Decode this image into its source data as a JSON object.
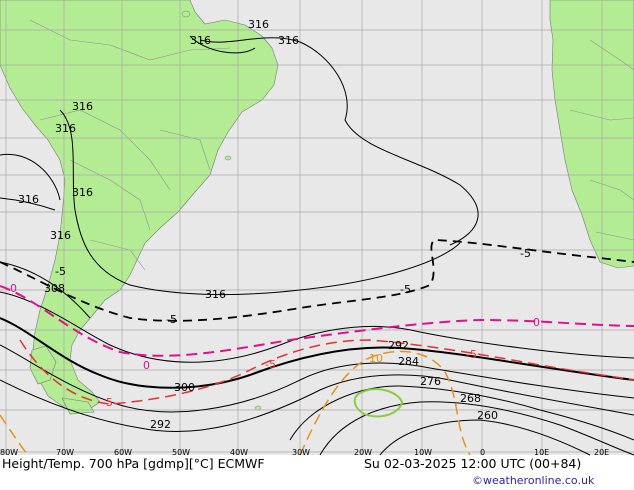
{
  "map": {
    "title_left": "Height/Temp. 700 hPa [gdmp][°C] ECMWF",
    "title_right": "Su 02-03-2025 12:00 UTC (00+84)",
    "credit": "©weatheronline.co.uk",
    "colors": {
      "ocean": "#e8e8e8",
      "land": "#b4ec94",
      "grid": "#a8a8a8",
      "height_contour": "#000000",
      "temp_zero": "#e0108e",
      "temp_neg5": "#e83030",
      "temp_neg10": "#e8901a",
      "temp_neg15": "#88cc40",
      "credit": "#2828a0"
    },
    "lon_labels": [
      "80W",
      "70W",
      "60W",
      "50W",
      "40W",
      "30W",
      "20W",
      "10W",
      "0",
      "10E",
      "20E"
    ],
    "height_labels": [
      "316",
      "316",
      "316",
      "316",
      "316",
      "316",
      "316",
      "316",
      "316",
      "308",
      "300",
      "292",
      "292",
      "284",
      "276",
      "268",
      "260"
    ],
    "temp_labels": [
      "-5",
      "-5",
      "-5",
      "-5",
      "0",
      "0",
      "-5",
      "-10",
      "-5",
      "0",
      "-5"
    ]
  }
}
